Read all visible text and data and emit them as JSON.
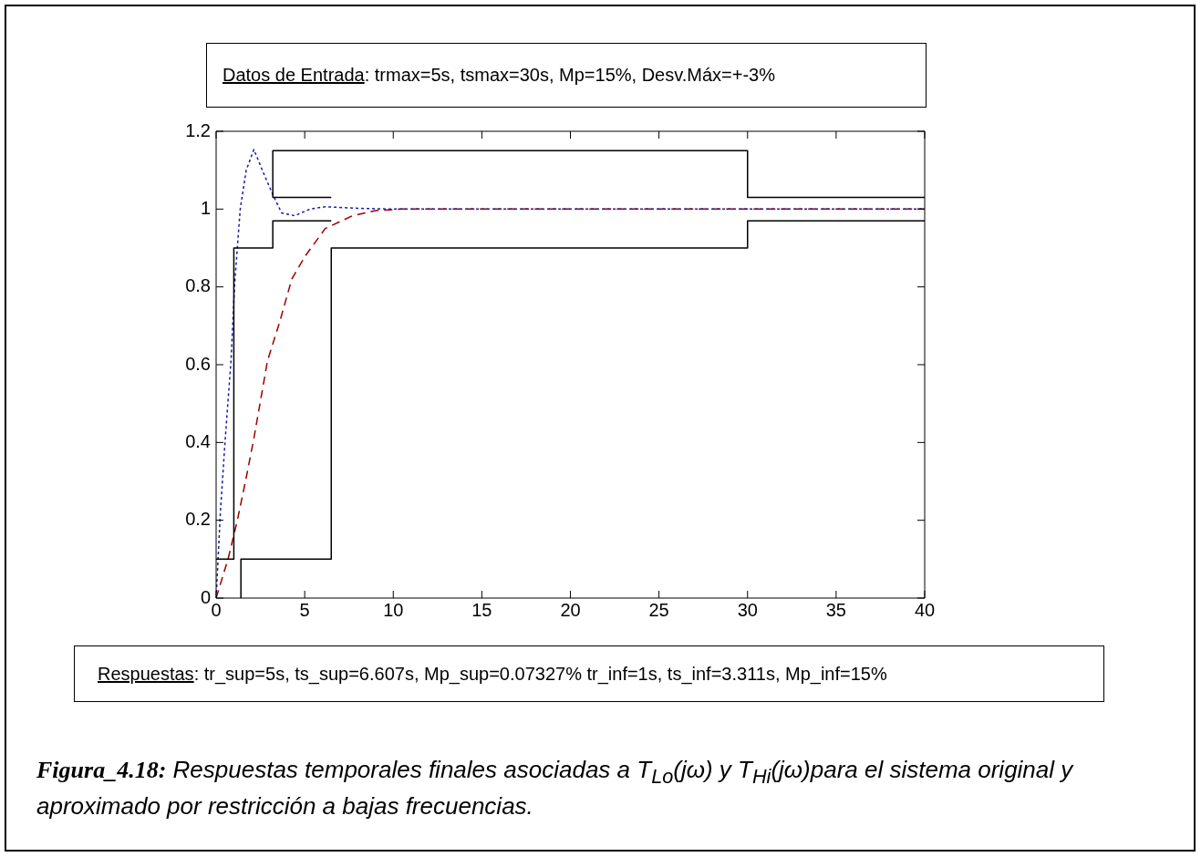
{
  "chart_data": {
    "type": "line",
    "annotations": [
      "Datos de Entrada: trmax=5s, tsmax=30s, Mp=15%, Desv.Máx=+-3%",
      "Respuestas: tr_sup=5s, ts_sup=6.607s, Mp_sup=0.07327% tr_inf=1s, ts_inf=3.311s, Mp_inf=15%",
      "Figura_4.18: Respuestas temporales finales asociadas a T$_{Lo}$(jω) y T$_{Hi}$(jω)para el sistema original y aproximado por restricción a bajas frecuencias."
    ],
    "xlim": [
      0,
      40
    ],
    "xticks": [
      0,
      5,
      10,
      15,
      20,
      25,
      30,
      35,
      40
    ],
    "ylim": [
      0,
      1.2
    ],
    "yticks": [
      0,
      0.2,
      0.4,
      0.6,
      0.8,
      1,
      1.2
    ],
    "grid": false,
    "legend": false,
    "marker": "none",
    "series": [
      {
        "color": "#000000",
        "line_style": "solid",
        "x": [
          0,
          1,
          1,
          3.2,
          3.2,
          6.5
        ],
        "values": [
          0.1,
          0.1,
          0.9,
          0.9,
          0.97,
          0.97
        ]
      },
      {
        "color": "#000000",
        "line_style": "solid",
        "x": [
          1.4,
          1.4,
          6.5,
          6.5,
          30,
          30,
          40
        ],
        "values": [
          0,
          0.1,
          0.1,
          0.9,
          0.9,
          0.97,
          0.97
        ]
      },
      {
        "color": "#000000",
        "line_style": "solid",
        "x": [
          6.5,
          3.2,
          3.2,
          30,
          30,
          40
        ],
        "values": [
          1.03,
          1.03,
          1.15,
          1.15,
          1.03,
          1.03
        ]
      },
      {
        "color": "#1a1aa8",
        "line_style": "dotted",
        "x": [
          0,
          0.24,
          0.5,
          0.84,
          1.05,
          1.36,
          1.7,
          2.13,
          2.7,
          3.2,
          3.7,
          4.44,
          5.3,
          6.16,
          8,
          10,
          40
        ],
        "values": [
          0,
          0.22,
          0.4,
          0.61,
          0.81,
          1,
          1.1,
          1.153,
          1.09,
          1.037,
          0.99,
          0.983,
          1,
          1.006,
          1.002,
          1,
          1
        ]
      },
      {
        "color": "#990000",
        "line_style": "dashed",
        "x": [
          0,
          0.67,
          1.2,
          1.7,
          2.13,
          2.9,
          3.59,
          4.27,
          5.04,
          6.16,
          7.7,
          9,
          10.5,
          40
        ],
        "values": [
          0,
          0.1,
          0.2,
          0.31,
          0.41,
          0.61,
          0.71,
          0.82,
          0.88,
          0.95,
          0.983,
          0.996,
          1,
          1
        ]
      }
    ]
  }
}
